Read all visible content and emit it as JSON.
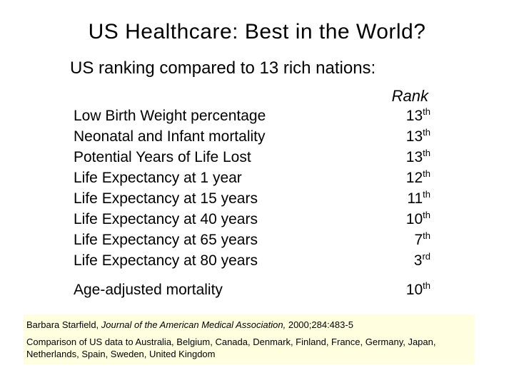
{
  "title": "US Healthcare: Best in the World?",
  "subtitle": "US ranking compared to 13 rich nations:",
  "rank_header": "Rank",
  "rows": [
    {
      "label": "Low Birth Weight percentage",
      "rank": "13",
      "suffix": "th"
    },
    {
      "label": "Neonatal and Infant mortality",
      "rank": "13",
      "suffix": "th"
    },
    {
      "label": "Potential Years of Life Lost",
      "rank": "13",
      "suffix": "th"
    },
    {
      "label": "Life Expectancy at 1 year",
      "rank": "12",
      "suffix": "th"
    },
    {
      "label": "Life Expectancy at 15 years",
      "rank": "11",
      "suffix": "th"
    },
    {
      "label": "Life Expectancy at 40 years",
      "rank": "10",
      "suffix": "th"
    },
    {
      "label": "Life Expectancy at 65 years",
      "rank": "7",
      "suffix": "th"
    },
    {
      "label": "Life Expectancy at 80 years",
      "rank": "3",
      "suffix": "rd"
    },
    {
      "label": "Age-adjusted mortality",
      "rank": "10",
      "suffix": "th"
    }
  ],
  "citation": {
    "author": "Barbara Starfield, ",
    "journal": "Journal of the American Medical Association,",
    "details": " 2000;284:483-5"
  },
  "comparison": "Comparison of US data to Australia, Belgium, Canada, Denmark, Finland, France, Germany, Japan, Netherlands, Spain, Sweden, United Kingdom",
  "colors": {
    "citation_background": "#ffffe0"
  }
}
